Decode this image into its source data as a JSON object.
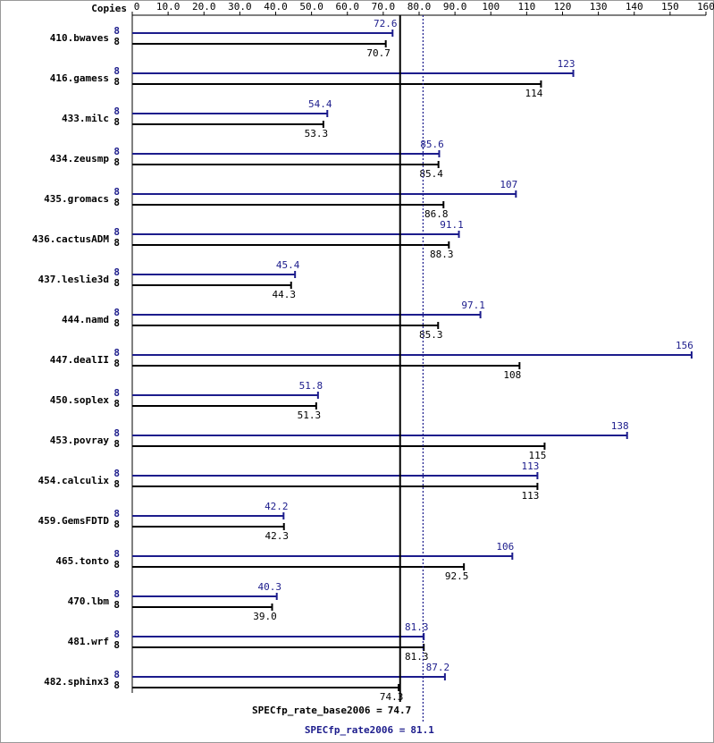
{
  "chart_data": {
    "type": "bar",
    "orientation": "horizontal",
    "copies_label": "Copies",
    "categories": [
      "410.bwaves",
      "416.gamess",
      "433.milc",
      "434.zeusmp",
      "435.gromacs",
      "436.cactusADM",
      "437.leslie3d",
      "444.namd",
      "447.dealII",
      "450.soplex",
      "453.povray",
      "454.calculix",
      "459.GemsFDTD",
      "465.tonto",
      "470.lbm",
      "481.wrf",
      "482.sphinx3"
    ],
    "series": [
      {
        "color": "#1c1c8c",
        "copies": [
          8,
          8,
          8,
          8,
          8,
          8,
          8,
          8,
          8,
          8,
          8,
          8,
          8,
          8,
          8,
          8,
          8
        ],
        "values": [
          72.6,
          123,
          54.4,
          85.6,
          107,
          91.1,
          45.4,
          97.1,
          156,
          51.8,
          138,
          113,
          42.2,
          106,
          40.3,
          81.3,
          87.2
        ],
        "value_labels": [
          "72.6",
          "123",
          "54.4",
          "85.6",
          "107",
          "91.1",
          "45.4",
          "97.1",
          "156",
          "51.8",
          "138",
          "113",
          "42.2",
          "106",
          "40.3",
          "81.3",
          "87.2"
        ]
      },
      {
        "color": "#000000",
        "copies": [
          8,
          8,
          8,
          8,
          8,
          8,
          8,
          8,
          8,
          8,
          8,
          8,
          8,
          8,
          8,
          8,
          8
        ],
        "values": [
          70.7,
          114,
          53.3,
          85.4,
          86.8,
          88.3,
          44.3,
          85.3,
          108,
          51.3,
          115,
          113,
          42.3,
          92.5,
          39.0,
          81.3,
          74.3
        ],
        "value_labels": [
          "70.7",
          "114",
          "53.3",
          "85.4",
          "86.8",
          "88.3",
          "44.3",
          "85.3",
          "108",
          "51.3",
          "115",
          "113",
          "42.3",
          "92.5",
          "39.0",
          "81.3",
          "74.3"
        ]
      }
    ],
    "xlim": [
      0,
      160
    ],
    "xticks": [
      0,
      {
        "value": 10,
        "label": "10.0"
      },
      {
        "value": 20,
        "label": "20.0"
      },
      {
        "value": 30,
        "label": "30.0"
      },
      {
        "value": 40,
        "label": "40.0"
      },
      {
        "value": 50,
        "label": "50.0"
      },
      {
        "value": 60,
        "label": "60.0"
      },
      {
        "value": 70,
        "label": "70.0"
      },
      {
        "value": 80,
        "label": "80.0"
      },
      {
        "value": 90,
        "label": "90.0"
      },
      100,
      110,
      120,
      130,
      140,
      150,
      160
    ],
    "reference_lines": [
      {
        "label": "SPECfp_rate_base2006 =",
        "value": 74.7,
        "color": "#000000",
        "style": "solid"
      },
      {
        "label": "SPECfp_rate2006 =",
        "value": 81.1,
        "color": "#1c1c8c",
        "style": "dotted"
      }
    ]
  }
}
